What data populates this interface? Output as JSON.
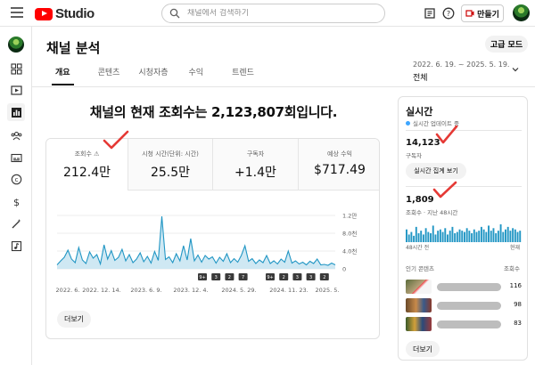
{
  "app": {
    "logo_text": "Studio",
    "brand_color": "#ff0000"
  },
  "search": {
    "placeholder": "채널에서 검색하기"
  },
  "topbar": {
    "create_label": "만들기",
    "icons": [
      "feedback-icon",
      "help-icon",
      "create-icon"
    ]
  },
  "sidebar": {
    "items": [
      {
        "name": "dashboard-icon"
      },
      {
        "name": "content-icon"
      },
      {
        "name": "analytics-icon",
        "active": true
      },
      {
        "name": "community-icon"
      },
      {
        "name": "subtitles-icon"
      },
      {
        "name": "copyright-icon"
      },
      {
        "name": "monetization-icon"
      },
      {
        "name": "customization-icon"
      },
      {
        "name": "audio-library-icon"
      }
    ]
  },
  "header": {
    "title": "채널 분석",
    "advanced_mode_label": "고급 모드",
    "tabs": [
      {
        "label": "개요",
        "active": true
      },
      {
        "label": "콘텐츠"
      },
      {
        "label": "시청자층"
      },
      {
        "label": "수익"
      },
      {
        "label": "트렌드"
      }
    ],
    "date_range": "2022. 6. 19. ~ 2025. 5. 19.",
    "date_label": "전체"
  },
  "overview": {
    "headline": "채널의 현재 조회수는 2,123,807회입니다.",
    "metrics": [
      {
        "label": "조회수 ⚠",
        "value": "212.4만",
        "active": true
      },
      {
        "label": "시청 시간(단위: 시간)",
        "value": "25.5만"
      },
      {
        "label": "구독자",
        "value": "+1.4만"
      },
      {
        "label": "예상 수익",
        "value": "$717.49"
      }
    ],
    "more_label": "더보기",
    "chart_data": {
      "type": "area",
      "series_color": "#2196c4",
      "x_tick_labels": [
        "2022. 6.",
        "2022. 12. 14.",
        "2023. 6. 9.",
        "2023. 12. 4.",
        "2024. 5. 29.",
        "2024. 11. 23.",
        "2025. 5."
      ],
      "y_tick_labels": [
        "1.2만",
        "8.0천",
        "4.0천",
        "0"
      ],
      "ylim": [
        0,
        12000
      ],
      "grid": true,
      "event_markers": [
        "9+",
        "3",
        "2",
        "7",
        "9+",
        "9+",
        "2",
        "3",
        "3",
        "2"
      ],
      "values": [
        900,
        1800,
        2600,
        4200,
        2200,
        1400,
        4800,
        2000,
        1200,
        3800,
        2400,
        3200,
        1100,
        5400,
        2200,
        4100,
        1900,
        2600,
        4400,
        1800,
        3200,
        1400,
        2200,
        3600,
        1600,
        2800,
        1300,
        3900,
        1900,
        11800,
        2100,
        2700,
        1400,
        3400,
        1800,
        5200,
        2000,
        6800,
        1800,
        3100,
        1500,
        3000,
        2200,
        2700,
        1300,
        2600,
        1700,
        3400,
        1400,
        2300,
        1500,
        3000,
        5200,
        1700,
        2300,
        1200,
        2000,
        1400,
        3000,
        1200,
        1800,
        1100,
        2200,
        1500,
        4000,
        1300,
        1800,
        1100,
        1500,
        900,
        1700,
        1200,
        2200,
        900,
        1000,
        800,
        1300,
        900
      ]
    }
  },
  "realtime": {
    "title": "실시간",
    "subtitle": "실시간 업데이트 중",
    "subscribers_value": "14,123",
    "subscribers_label": "구독자",
    "live_count_button": "실시간 집계 보기",
    "views_value": "1,809",
    "views_label": "조회수 · 지난 48시간",
    "axis_left": "48시간 전",
    "axis_right": "현재",
    "popular_header_left": "인기 콘텐츠",
    "popular_header_right": "조회수",
    "popular": [
      {
        "views": "116"
      },
      {
        "views": "98"
      },
      {
        "views": "83"
      }
    ],
    "more_label": "더보기",
    "mini_values": [
      10,
      6,
      8,
      5,
      12,
      7,
      9,
      6,
      11,
      8,
      7,
      13,
      6,
      9,
      10,
      8,
      11,
      6,
      9,
      12,
      7,
      8,
      10,
      9,
      8,
      11,
      9,
      7,
      10,
      8,
      9,
      12,
      10,
      8,
      13,
      9,
      11,
      7,
      9,
      14,
      8,
      10,
      12,
      9,
      11,
      10,
      8,
      9
    ]
  }
}
